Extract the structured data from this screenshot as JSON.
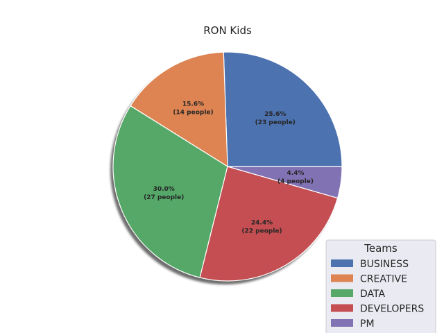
{
  "chart_data": {
    "type": "pie",
    "title": "RON Kids",
    "categories": [
      "BUSINESS",
      "CREATIVE",
      "DATA",
      "DEVELOPERS",
      "PM"
    ],
    "values": [
      23,
      14,
      27,
      22,
      4
    ],
    "percent_labels": [
      "25.6%",
      "15.6%",
      "30.0%",
      "24.4%",
      "4.4%"
    ],
    "count_labels": [
      "(23 people)",
      "(14 people)",
      "(27 people)",
      "(22 people)",
      "(4 people)"
    ],
    "colors": [
      "#4c72b0",
      "#dd8452",
      "#55a868",
      "#c44e52",
      "#8172b3"
    ],
    "shadow": true,
    "start_angle_deg": 0,
    "direction": "counterclockwise",
    "legend": {
      "title": "Teams",
      "placement": "bottom-right",
      "background": "#eaeaf2"
    }
  }
}
